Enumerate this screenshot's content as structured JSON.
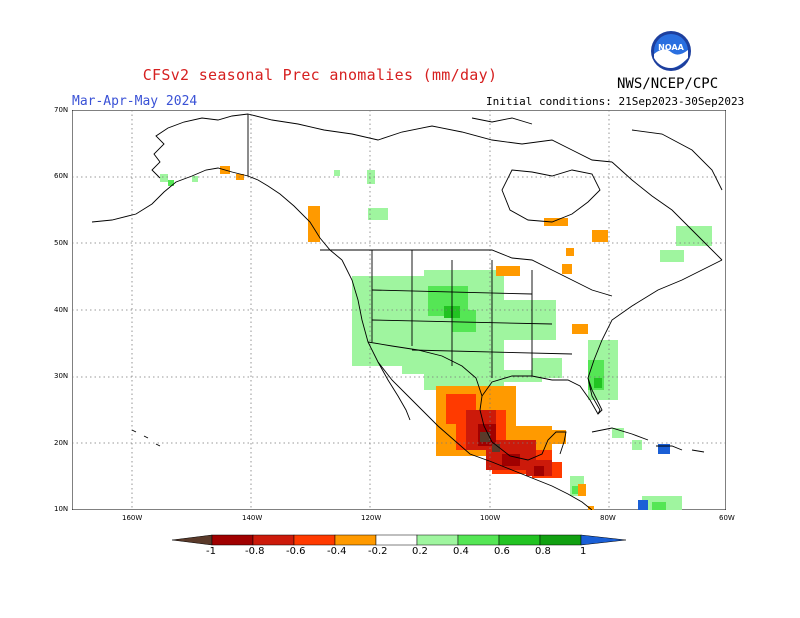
{
  "title": "CFSv2 seasonal Prec anomalies (mm/day)",
  "season": "Mar-Apr-May 2024",
  "initial_conditions": "Initial conditions: 21Sep2023-30Sep2023",
  "agency": "NWS/NCEP/CPC",
  "logo_text": "NOAA",
  "lat_labels": [
    "70N",
    "60N",
    "50N",
    "40N",
    "30N",
    "20N",
    "10N"
  ],
  "lon_labels": [
    "160W",
    "140W",
    "120W",
    "100W",
    "80W",
    "60W"
  ],
  "colorbar": {
    "labels": [
      "-1",
      "-0.8",
      "-0.6",
      "-0.4",
      "-0.2",
      "0.2",
      "0.4",
      "0.6",
      "0.8",
      "1"
    ],
    "colors": [
      "#5a3a2a",
      "#a00000",
      "#cc1a0a",
      "#ff3a00",
      "#ff9a00",
      "#ffffff",
      "#9ff59f",
      "#55e655",
      "#22c322",
      "#11a011",
      "#1a5fd6"
    ]
  },
  "colors": {
    "title": "#d62020",
    "season": "#3a52d6",
    "grid": "#7a7a7a",
    "coast": "#000000"
  }
}
